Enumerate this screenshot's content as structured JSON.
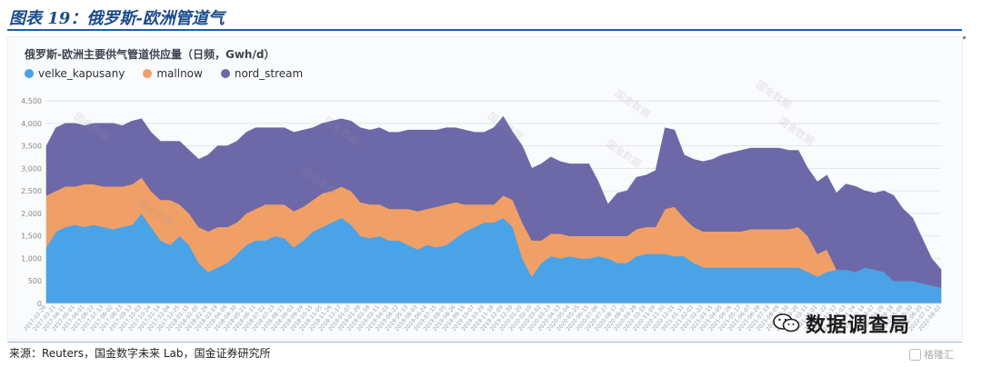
{
  "figure_title": "图表 19：俄罗斯-欧洲管道气",
  "source": "来源：Reuters，国金数字未来 Lab，国金证券研究所",
  "watermark": "国金数据",
  "brand": "数据调查局",
  "corner_logo": "格隆汇",
  "colors": {
    "velke_kapusany": "#4aa3e6",
    "mallnow": "#f0a066",
    "nord_stream": "#6d68a8",
    "title_blue": "#1c4c8c"
  },
  "chart_data": {
    "type": "area",
    "stacked": true,
    "title": "俄罗斯-欧洲主要供气管道供应量（日频，Gwh/d）",
    "ylim": [
      0,
      4500
    ],
    "yticks": [
      "0",
      "500",
      "1,000",
      "1,500",
      "2,000",
      "2,500",
      "3,000",
      "3,500",
      "4,000",
      "4,500"
    ],
    "grid": true,
    "legend_position": "top-left",
    "x": [
      "2017-02-28",
      "2017-03-21",
      "2017-04-11",
      "2017-05-01",
      "2017-06-01",
      "2017-06-22",
      "2017-07-13",
      "2017-08-02",
      "2017-08-23",
      "2017-09-13",
      "2017-10-03",
      "2017-10-24",
      "2017-11-14",
      "2017-12-04",
      "2017-12-25",
      "2018-01-15",
      "2018-02-05",
      "2018-02-26",
      "2018-03-19",
      "2018-04-09",
      "2018-04-30",
      "2018-05-21",
      "2018-06-11",
      "2018-07-02",
      "2018-07-23",
      "2018-08-13",
      "2018-09-03",
      "2018-09-24",
      "2018-10-15",
      "2018-11-05",
      "2018-11-26",
      "2018-12-17",
      "2019-01-07",
      "2019-01-28",
      "2019-02-18",
      "2019-03-11",
      "2019-04-01",
      "2019-04-22",
      "2019-05-13",
      "2019-06-03",
      "2019-06-24",
      "2019-07-15",
      "2019-08-05",
      "2019-08-26",
      "2019-09-16",
      "2019-10-07",
      "2019-10-28",
      "2019-11-18",
      "2019-12-09",
      "2019-12-30",
      "2020-01-20",
      "2020-02-10",
      "2020-03-02",
      "2020-03-23",
      "2020-04-13",
      "2020-05-04",
      "2020-05-25",
      "2020-06-15",
      "2020-07-06",
      "2020-07-27",
      "2020-08-17",
      "2020-09-07",
      "2020-09-28",
      "2020-10-19",
      "2020-11-09",
      "2020-11-30",
      "2020-12-21",
      "2021-01-11",
      "2021-02-01",
      "2021-02-22",
      "2021-03-15",
      "2021-04-05",
      "2021-04-26",
      "2021-05-17",
      "2021-06-07",
      "2021-06-28",
      "2021-07-19",
      "2021-08-09",
      "2021-08-30",
      "2021-09-20",
      "2021-10-11",
      "2021-11-01",
      "2021-11-22",
      "2021-12-13",
      "2022-01-03",
      "2022-01-24",
      "2022-02-14",
      "2022-03-07",
      "2022-03-28",
      "2022-04-18",
      "2022-05-09",
      "2022-05-30",
      "2022-06-20",
      "2022-07-11",
      "2022-08-01"
    ],
    "series": [
      {
        "name": "velke_kapusany",
        "values": [
          1250,
          1600,
          1700,
          1750,
          1700,
          1750,
          1700,
          1650,
          1700,
          1750,
          2000,
          1700,
          1400,
          1300,
          1500,
          1300,
          900,
          700,
          800,
          900,
          1100,
          1300,
          1400,
          1400,
          1500,
          1450,
          1250,
          1400,
          1600,
          1700,
          1800,
          1900,
          1750,
          1500,
          1450,
          1500,
          1400,
          1400,
          1300,
          1200,
          1300,
          1250,
          1300,
          1450,
          1600,
          1700,
          1800,
          1800,
          1900,
          1700,
          1000,
          600,
          900,
          1050,
          1000,
          1050,
          1000,
          1000,
          1050,
          1000,
          900,
          900,
          1050,
          1100,
          1100,
          1100,
          1050,
          1050,
          900,
          800,
          800,
          800,
          800,
          800,
          800,
          800,
          800,
          800,
          800,
          800,
          700,
          600,
          700,
          750,
          750,
          700,
          800,
          750,
          700,
          500,
          500,
          500,
          450,
          400,
          350
        ]
      },
      {
        "name": "mallnow",
        "values": [
          1150,
          900,
          900,
          850,
          950,
          900,
          900,
          950,
          900,
          900,
          800,
          800,
          900,
          1000,
          700,
          700,
          800,
          900,
          900,
          800,
          700,
          700,
          700,
          800,
          700,
          750,
          800,
          750,
          700,
          750,
          700,
          700,
          750,
          750,
          750,
          700,
          700,
          700,
          800,
          850,
          800,
          900,
          900,
          800,
          600,
          500,
          400,
          400,
          500,
          600,
          800,
          800,
          500,
          500,
          550,
          450,
          500,
          500,
          450,
          500,
          600,
          600,
          600,
          600,
          600,
          1000,
          1100,
          850,
          800,
          800,
          800,
          800,
          800,
          800,
          850,
          850,
          850,
          850,
          850,
          900,
          800,
          500,
          500,
          0,
          0,
          0,
          0,
          0,
          0,
          0,
          0,
          0,
          0,
          0,
          0
        ]
      },
      {
        "name": "nord_stream",
        "values": [
          1100,
          1400,
          1400,
          1400,
          1300,
          1350,
          1400,
          1400,
          1350,
          1400,
          1300,
          1300,
          1300,
          1300,
          1400,
          1400,
          1500,
          1700,
          1800,
          1800,
          1800,
          1800,
          1800,
          1700,
          1700,
          1700,
          1750,
          1700,
          1600,
          1550,
          1550,
          1500,
          1550,
          1650,
          1650,
          1700,
          1700,
          1700,
          1750,
          1800,
          1750,
          1700,
          1700,
          1650,
          1650,
          1600,
          1600,
          1700,
          1750,
          1500,
          1700,
          1600,
          1700,
          1700,
          1600,
          1600,
          1600,
          1600,
          1200,
          700,
          950,
          1000,
          1150,
          1150,
          1250,
          1800,
          1700,
          1400,
          1500,
          1550,
          1600,
          1700,
          1750,
          1800,
          1800,
          1800,
          1800,
          1800,
          1750,
          1700,
          1500,
          1600,
          1650,
          1700,
          1900,
          1900,
          1700,
          1700,
          1800,
          1900,
          1600,
          1400,
          1000,
          600,
          400
        ]
      }
    ]
  }
}
